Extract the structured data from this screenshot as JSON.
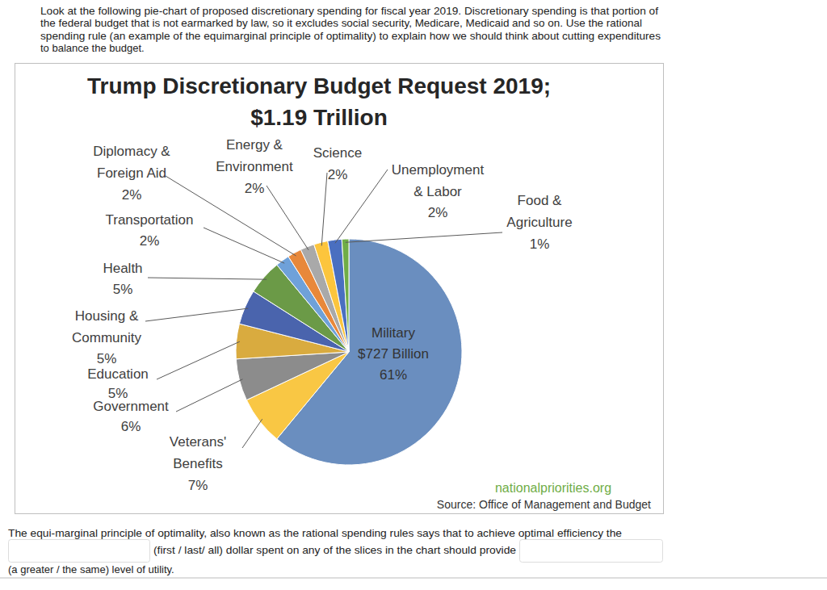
{
  "question": {
    "lines": [
      "Look at the following pie-chart of proposed discretionary spending for fiscal year 2019.  Discretionary spending is that portion of",
      "the federal budget that is not earmarked by law, so it excludes social security, Medicare, Medicaid and so on.  Use the rational",
      "spending rule (an example of the equimarginal principle of optimality) to explain how we should think about cutting expenditures",
      "to balance the budget."
    ]
  },
  "chart_data": {
    "type": "pie",
    "title": "Trump Discretionary Budget Request 2019;",
    "subtitle": "$1.19 Trillion",
    "categories": [
      "Military",
      "Veterans' Benefits",
      "Government",
      "Education",
      "Housing & Community",
      "Health",
      "Transportation",
      "Diplomacy & Foreign Aid",
      "Energy & Environment",
      "Science",
      "Unemployment & Labor",
      "Food & Agriculture"
    ],
    "values": [
      61,
      7,
      6,
      5,
      5,
      5,
      2,
      2,
      2,
      2,
      2,
      1
    ],
    "value_labels": [
      "61%",
      "7%",
      "6%",
      "5%",
      "5%",
      "5%",
      "2%",
      "2%",
      "2%",
      "2%",
      "2%",
      "1%"
    ],
    "colors": [
      "#6a8ebf",
      "#f9c744",
      "#8c8c8c",
      "#d9ab3f",
      "#4a64ad",
      "#6b9a47",
      "#6fa1d9",
      "#e8883a",
      "#a9a9a9",
      "#fcc53d",
      "#4a6fc0",
      "#70ad47"
    ],
    "data_labels": true,
    "annotations": [
      {
        "text": "$727 Billion"
      }
    ]
  },
  "credits": {
    "site": "nationalpriorities.org",
    "source": "Source: Office of Management and Budget"
  },
  "prompt": {
    "lines": [
      "The equi-marginal principle of optimality, also known as the rational spending rules says that to achieve optimal efficiency the",
      "(first / last/ all) dollar spent on any of the slices in the chart should provide",
      "(a greater / the same) level of utility."
    ]
  }
}
